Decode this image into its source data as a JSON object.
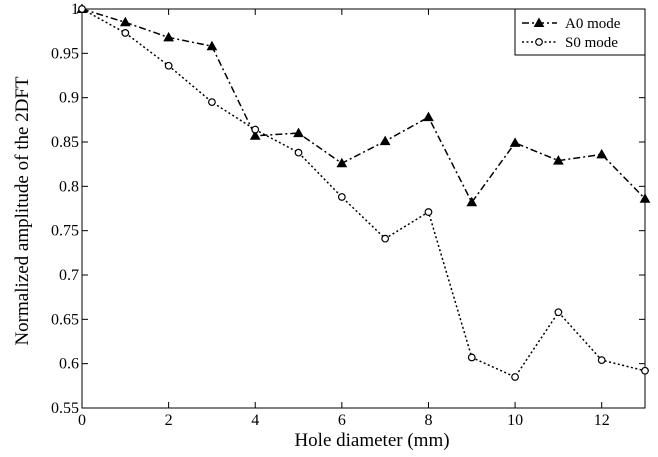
{
  "chart_data": {
    "type": "line",
    "title": "",
    "xlabel": "Hole diameter (mm)",
    "ylabel": "Normalized amplitude of the 2DFT",
    "xlim": [
      0,
      13
    ],
    "ylim": [
      0.55,
      1.0
    ],
    "xticks": [
      0,
      2,
      4,
      6,
      8,
      10,
      12
    ],
    "yticks": [
      0.55,
      0.6,
      0.65,
      0.7,
      0.75,
      0.8,
      0.85,
      0.9,
      0.95,
      1
    ],
    "ytick_labels": [
      "0.55",
      "0.6",
      "0.65",
      "0.7",
      "0.75",
      "0.8",
      "0.85",
      "0.9",
      "0.95",
      "1"
    ],
    "grid": false,
    "legend_position": "top-right",
    "x": [
      0,
      1,
      2,
      3,
      4,
      5,
      6,
      7,
      8,
      9,
      10,
      11,
      12,
      13
    ],
    "series": [
      {
        "name": "A0 mode",
        "marker": "triangle",
        "line_style": "dash-dot",
        "color": "#000000",
        "values": [
          1.0,
          0.985,
          0.968,
          0.958,
          0.857,
          0.86,
          0.826,
          0.851,
          0.878,
          0.782,
          0.849,
          0.829,
          0.836,
          0.786
        ]
      },
      {
        "name": "S0 mode",
        "marker": "circle",
        "line_style": "dotted",
        "color": "#000000",
        "values": [
          1.0,
          0.973,
          0.936,
          0.895,
          0.864,
          0.838,
          0.788,
          0.741,
          0.771,
          0.607,
          0.585,
          0.658,
          0.604,
          0.592
        ]
      }
    ]
  }
}
